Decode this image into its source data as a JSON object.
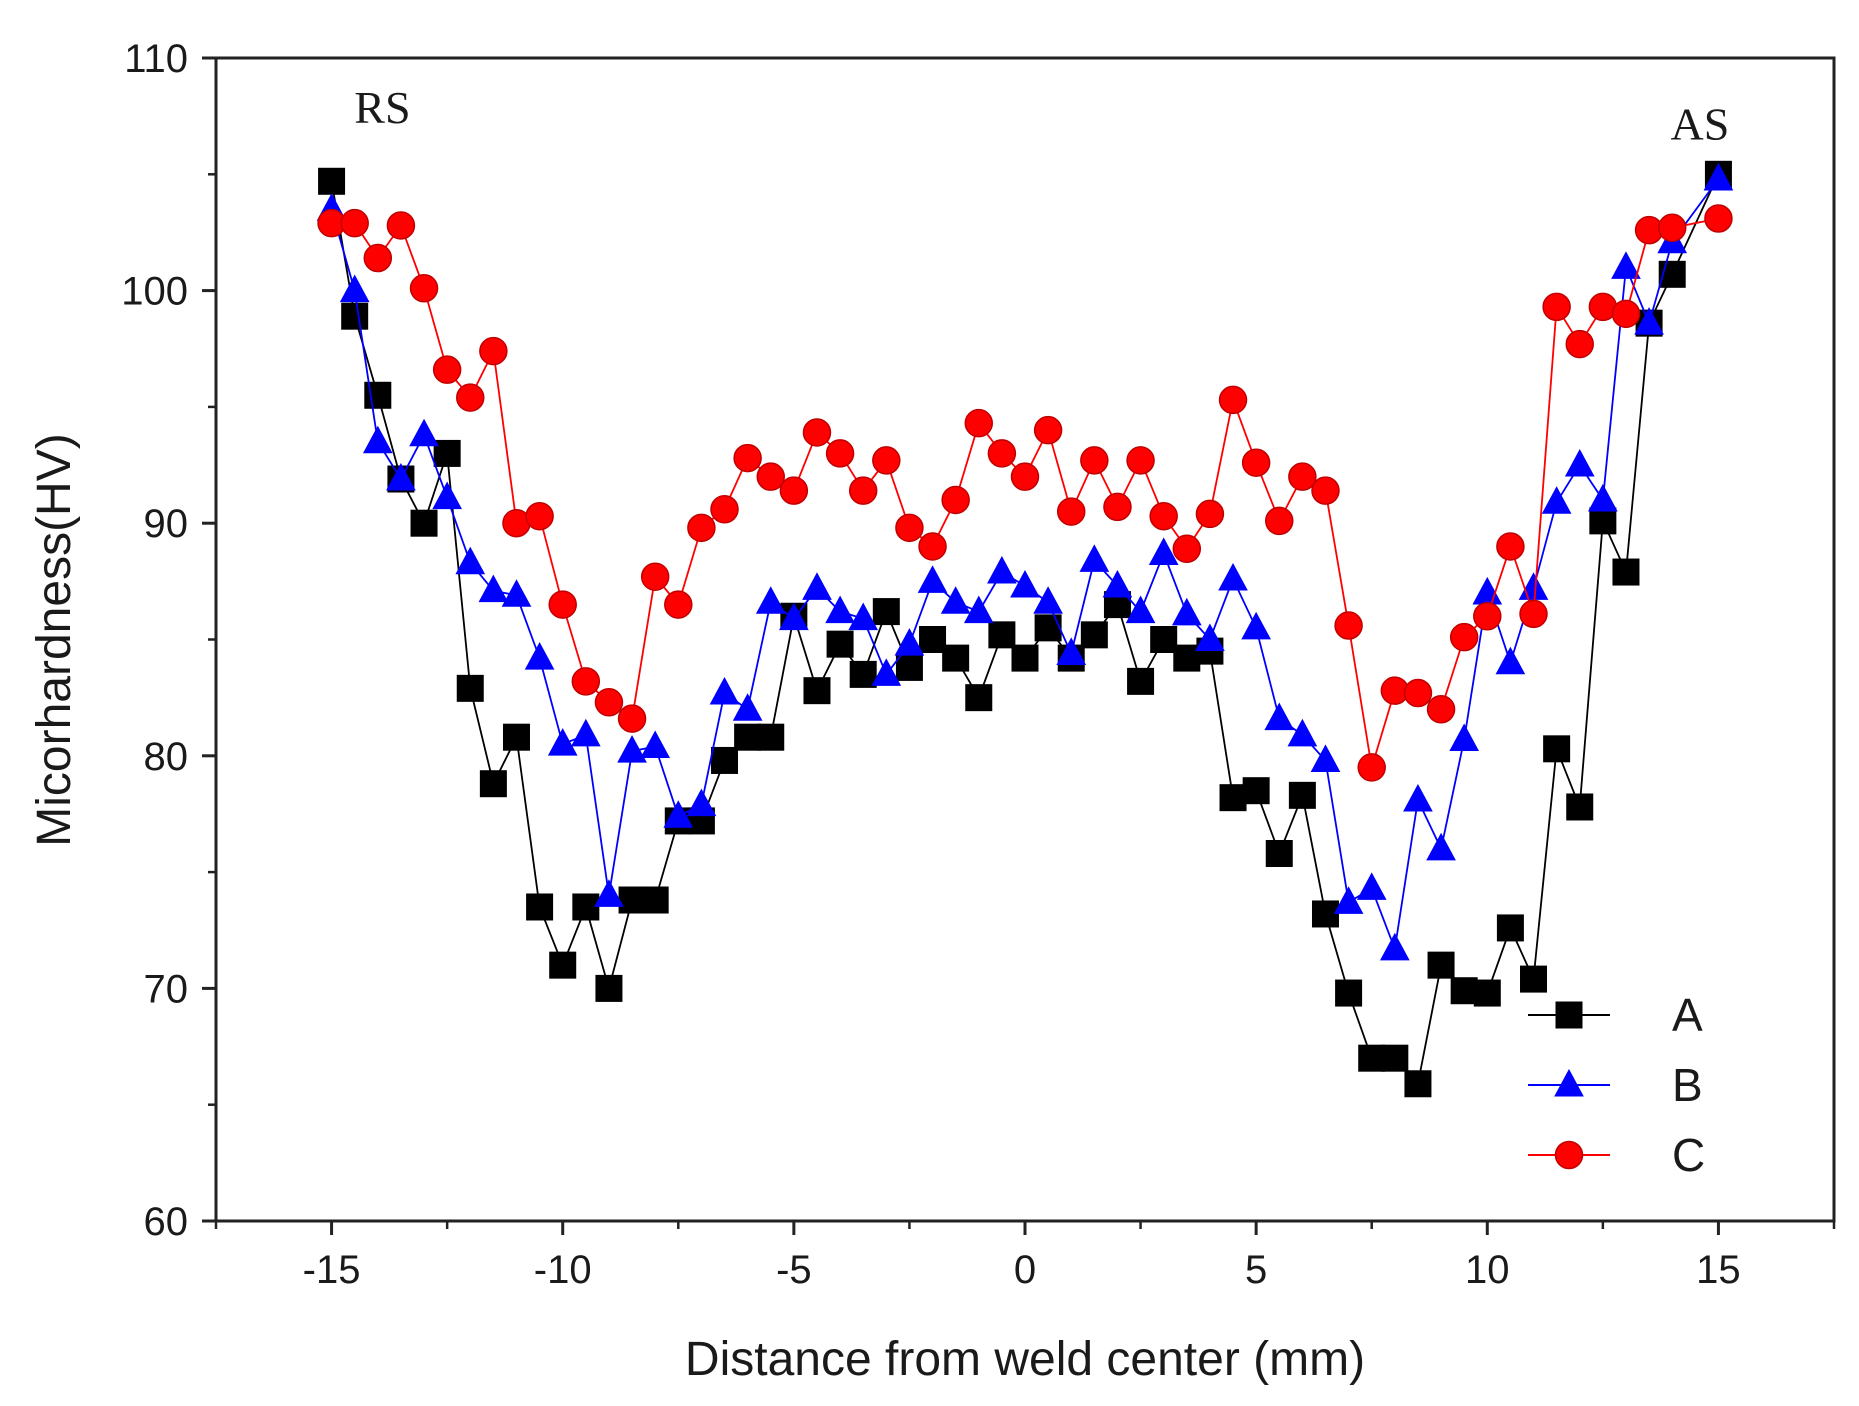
{
  "chart_data": {
    "type": "line",
    "title": "",
    "xlabel": "Distance from weld center (mm)",
    "ylabel": "Micorhardness(HV)",
    "xlim": [
      -17.5,
      17.5
    ],
    "ylim": [
      60,
      110
    ],
    "xticks": [
      -15,
      -10,
      -5,
      0,
      5,
      10,
      15
    ],
    "yticks": [
      60,
      70,
      80,
      90,
      100,
      110
    ],
    "grid": false,
    "legend_position": "bottom-right",
    "annotations": [
      {
        "text": "RS",
        "x": -13.9,
        "y": 107.2
      },
      {
        "text": "AS",
        "x": 14.6,
        "y": 106.5
      }
    ],
    "x": [
      -15,
      -14.5,
      -14,
      -13.5,
      -13,
      -12.5,
      -12,
      -11.5,
      -11,
      -10.5,
      -10,
      -9.5,
      -9,
      -8.5,
      -8,
      -7.5,
      -7,
      -6.5,
      -6,
      -5.5,
      -5,
      -4.5,
      -4,
      -3.5,
      -3,
      -2.5,
      -2,
      -1.5,
      -1,
      -0.5,
      0,
      0.5,
      1,
      1.5,
      2,
      2.5,
      3,
      3.5,
      4,
      4.5,
      5,
      5.5,
      6,
      6.5,
      7,
      7.5,
      8,
      8.5,
      9,
      9.5,
      10,
      10.5,
      11,
      11.5,
      12,
      12.5,
      13,
      13.5,
      14,
      15
    ],
    "series": [
      {
        "name": "A",
        "color": "#000000",
        "marker": "square",
        "values": [
          104.7,
          98.9,
          95.5,
          91.9,
          90.0,
          93.0,
          82.9,
          78.8,
          80.8,
          73.5,
          71.0,
          73.5,
          70.0,
          73.8,
          73.8,
          77.2,
          77.2,
          79.8,
          80.8,
          80.8,
          86.0,
          82.8,
          84.8,
          83.5,
          86.2,
          83.8,
          85.0,
          84.2,
          82.5,
          85.2,
          84.2,
          85.5,
          84.2,
          85.2,
          86.5,
          83.2,
          85.0,
          84.2,
          84.5,
          78.2,
          78.5,
          75.8,
          78.3,
          73.2,
          69.8,
          67.0,
          67.0,
          65.9,
          71.0,
          69.9,
          69.8,
          72.6,
          70.4,
          80.3,
          77.8,
          90.1,
          87.9,
          98.6,
          100.7,
          105.0
        ]
      },
      {
        "name": "B",
        "color": "#0000ff",
        "marker": "triangle",
        "values": [
          103.5,
          100.0,
          93.5,
          91.9,
          93.8,
          91.1,
          88.3,
          87.1,
          86.9,
          84.2,
          80.5,
          80.9,
          74.0,
          80.2,
          80.4,
          77.4,
          77.9,
          82.7,
          82.0,
          86.6,
          85.9,
          87.2,
          86.2,
          85.9,
          83.5,
          84.8,
          87.5,
          86.6,
          86.2,
          87.9,
          87.3,
          86.6,
          84.4,
          88.4,
          87.3,
          86.2,
          88.7,
          86.1,
          85.0,
          87.6,
          85.5,
          81.6,
          80.9,
          79.8,
          73.7,
          74.3,
          71.7,
          78.1,
          76.0,
          80.7,
          87.0,
          84.0,
          87.2,
          90.9,
          92.5,
          91.0,
          101.0,
          98.6,
          102.1,
          104.8
        ]
      },
      {
        "name": "C",
        "color": "#ff0000",
        "marker": "circle",
        "values": [
          102.9,
          102.9,
          101.4,
          102.8,
          100.1,
          96.6,
          95.4,
          97.4,
          90.0,
          90.3,
          86.5,
          83.2,
          82.3,
          81.6,
          87.7,
          86.5,
          89.8,
          90.6,
          92.8,
          92.0,
          91.4,
          93.9,
          93.0,
          91.4,
          92.7,
          89.8,
          89.0,
          91.0,
          94.3,
          93.0,
          92.0,
          94.0,
          90.5,
          92.7,
          90.7,
          92.7,
          90.3,
          88.9,
          90.4,
          95.3,
          92.6,
          90.1,
          92.0,
          91.4,
          85.6,
          79.5,
          82.8,
          82.7,
          82.0,
          85.1,
          86.0,
          89.0,
          86.1,
          99.3,
          97.7,
          99.3,
          99.0,
          102.6,
          102.7,
          103.1
        ]
      }
    ]
  }
}
